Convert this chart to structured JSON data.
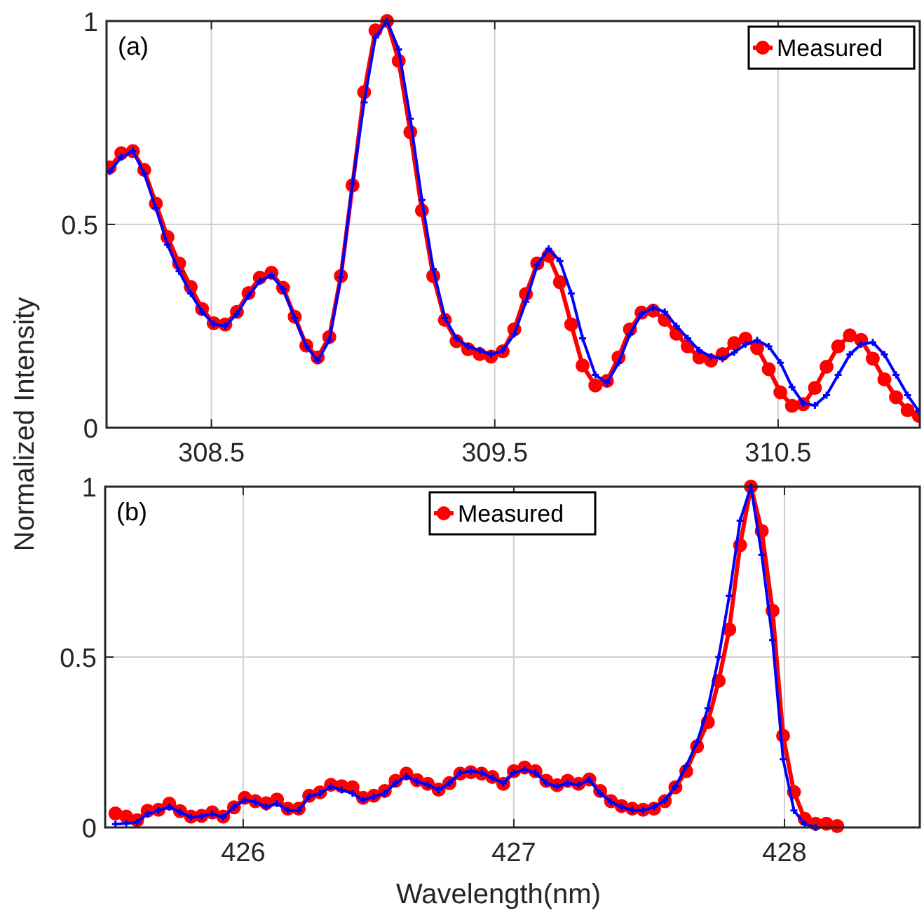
{
  "chart_data": [
    {
      "type": "line",
      "ylabel": "Normalized Intensity",
      "annotations": [
        "(a)"
      ],
      "xlim": [
        308.13,
        311
      ],
      "ylim": [
        0,
        1
      ],
      "xticks": [
        308.5,
        309.5,
        310.5
      ],
      "yticks": [
        0,
        0.5,
        1
      ],
      "grid": true,
      "legend": "top right",
      "line_style": "solid",
      "series": [
        {
          "color": "#0000ff",
          "marker": "cross",
          "x": [
            308.141,
            308.182,
            308.223,
            308.263,
            308.304,
            308.345,
            308.386,
            308.427,
            308.467,
            308.508,
            308.549,
            308.59,
            308.631,
            308.671,
            308.712,
            308.753,
            308.794,
            308.835,
            308.875,
            308.916,
            308.957,
            308.998,
            309.039,
            309.079,
            309.12,
            309.161,
            309.202,
            309.243,
            309.283,
            309.324,
            309.365,
            309.406,
            309.447,
            309.487,
            309.528,
            309.569,
            309.61,
            309.65,
            309.69,
            309.73,
            309.77,
            309.81,
            309.855,
            309.896,
            309.937,
            309.977,
            310.018,
            310.059,
            310.1,
            310.141,
            310.181,
            310.222,
            310.263,
            310.304,
            310.345,
            310.385,
            310.426,
            310.467,
            310.508,
            310.549,
            310.589,
            310.63,
            310.671,
            310.712,
            310.753,
            310.793,
            310.834,
            310.875,
            310.916,
            310.957,
            310.997
          ],
          "values": [
            0.63,
            0.665,
            0.68,
            0.625,
            0.54,
            0.45,
            0.385,
            0.33,
            0.285,
            0.255,
            0.25,
            0.28,
            0.325,
            0.36,
            0.375,
            0.34,
            0.27,
            0.2,
            0.165,
            0.215,
            0.37,
            0.6,
            0.8,
            0.96,
            1.0,
            0.93,
            0.76,
            0.56,
            0.39,
            0.27,
            0.22,
            0.2,
            0.19,
            0.18,
            0.19,
            0.23,
            0.31,
            0.4,
            0.44,
            0.41,
            0.33,
            0.22,
            0.13,
            0.11,
            0.16,
            0.23,
            0.28,
            0.295,
            0.285,
            0.25,
            0.22,
            0.19,
            0.175,
            0.17,
            0.185,
            0.205,
            0.215,
            0.2,
            0.16,
            0.1,
            0.06,
            0.055,
            0.08,
            0.13,
            0.18,
            0.205,
            0.21,
            0.18,
            0.13,
            0.08,
            0.04
          ]
        },
        {
          "name": "Measured",
          "color": "#ff0000",
          "marker": "circle",
          "x": [
            308.141,
            308.182,
            308.223,
            308.263,
            308.304,
            308.345,
            308.386,
            308.427,
            308.467,
            308.508,
            308.549,
            308.59,
            308.631,
            308.671,
            308.712,
            308.753,
            308.794,
            308.835,
            308.875,
            308.916,
            308.957,
            308.998,
            309.039,
            309.079,
            309.12,
            309.161,
            309.202,
            309.243,
            309.283,
            309.324,
            309.365,
            309.406,
            309.447,
            309.487,
            309.528,
            309.569,
            309.61,
            309.65,
            309.69,
            309.73,
            309.77,
            309.81,
            309.855,
            309.896,
            309.937,
            309.977,
            310.018,
            310.059,
            310.1,
            310.141,
            310.181,
            310.222,
            310.263,
            310.304,
            310.345,
            310.385,
            310.426,
            310.467,
            310.508,
            310.549,
            310.589,
            310.63,
            310.671,
            310.712,
            310.753,
            310.793,
            310.834,
            310.875,
            310.916,
            310.957,
            310.997
          ],
          "values": [
            0.64,
            0.675,
            0.68,
            0.634,
            0.551,
            0.469,
            0.404,
            0.346,
            0.292,
            0.257,
            0.254,
            0.285,
            0.331,
            0.369,
            0.381,
            0.344,
            0.273,
            0.202,
            0.173,
            0.223,
            0.373,
            0.596,
            0.825,
            0.977,
            1.0,
            0.902,
            0.727,
            0.534,
            0.373,
            0.265,
            0.213,
            0.193,
            0.181,
            0.175,
            0.188,
            0.242,
            0.329,
            0.404,
            0.423,
            0.358,
            0.254,
            0.153,
            0.104,
            0.115,
            0.173,
            0.242,
            0.283,
            0.288,
            0.265,
            0.231,
            0.2,
            0.173,
            0.165,
            0.181,
            0.208,
            0.219,
            0.196,
            0.144,
            0.087,
            0.054,
            0.058,
            0.098,
            0.15,
            0.2,
            0.227,
            0.216,
            0.17,
            0.119,
            0.075,
            0.043,
            0.029
          ]
        }
      ]
    },
    {
      "type": "line",
      "xlabel": "Wavelength(nm)",
      "annotations": [
        "(b)"
      ],
      "xlim": [
        425.49,
        428.5
      ],
      "ylim": [
        0,
        1
      ],
      "xticks": [
        426,
        427,
        428
      ],
      "yticks": [
        0,
        0.5,
        1
      ],
      "grid": true,
      "legend": "top",
      "line_style": "solid",
      "series": [
        {
          "color": "#0000ff",
          "marker": "cross",
          "x": [
            425.528,
            425.568,
            425.608,
            425.647,
            425.687,
            425.727,
            425.767,
            425.807,
            425.846,
            425.886,
            425.926,
            425.966,
            426.006,
            426.045,
            426.085,
            426.125,
            426.165,
            426.205,
            426.244,
            426.284,
            426.324,
            426.364,
            426.404,
            426.443,
            426.483,
            426.523,
            426.563,
            426.603,
            426.642,
            426.682,
            426.722,
            426.762,
            426.802,
            426.841,
            426.881,
            426.921,
            426.961,
            427.0,
            427.04,
            427.08,
            427.12,
            427.16,
            427.199,
            427.239,
            427.279,
            427.319,
            427.359,
            427.398,
            427.438,
            427.478,
            427.518,
            427.558,
            427.597,
            427.637,
            427.677,
            427.717,
            427.757,
            427.796,
            427.836,
            427.876,
            427.916,
            427.956,
            427.995,
            428.035,
            428.075,
            428.115
          ],
          "values": [
            0.01,
            0.012,
            0.015,
            0.04,
            0.05,
            0.06,
            0.045,
            0.03,
            0.033,
            0.04,
            0.03,
            0.06,
            0.08,
            0.075,
            0.06,
            0.07,
            0.05,
            0.05,
            0.09,
            0.1,
            0.12,
            0.11,
            0.1,
            0.08,
            0.09,
            0.1,
            0.13,
            0.15,
            0.135,
            0.125,
            0.11,
            0.13,
            0.16,
            0.165,
            0.16,
            0.145,
            0.13,
            0.16,
            0.17,
            0.16,
            0.13,
            0.12,
            0.13,
            0.125,
            0.14,
            0.1,
            0.075,
            0.06,
            0.05,
            0.05,
            0.06,
            0.08,
            0.12,
            0.18,
            0.25,
            0.35,
            0.5,
            0.68,
            0.9,
            1.0,
            0.8,
            0.55,
            0.2,
            0.05,
            0.01,
            0.0
          ]
        },
        {
          "name": "Measured",
          "color": "#ff0000",
          "marker": "circle",
          "x": [
            425.528,
            425.568,
            425.608,
            425.647,
            425.687,
            425.727,
            425.767,
            425.807,
            425.846,
            425.886,
            425.926,
            425.966,
            426.006,
            426.045,
            426.085,
            426.125,
            426.165,
            426.205,
            426.244,
            426.284,
            426.324,
            426.364,
            426.404,
            426.443,
            426.483,
            426.523,
            426.563,
            426.603,
            426.642,
            426.682,
            426.722,
            426.762,
            426.802,
            426.841,
            426.881,
            426.921,
            426.961,
            427.0,
            427.04,
            427.08,
            427.12,
            427.16,
            427.199,
            427.239,
            427.279,
            427.319,
            427.359,
            427.398,
            427.438,
            427.478,
            427.518,
            427.558,
            427.597,
            427.637,
            427.677,
            427.717,
            427.757,
            427.796,
            427.836,
            427.876,
            427.916,
            427.956,
            427.995,
            428.035,
            428.075,
            428.115,
            428.155,
            428.195
          ],
          "values": [
            0.041,
            0.032,
            0.021,
            0.049,
            0.052,
            0.07,
            0.048,
            0.032,
            0.034,
            0.044,
            0.032,
            0.059,
            0.087,
            0.077,
            0.071,
            0.082,
            0.055,
            0.055,
            0.093,
            0.103,
            0.125,
            0.121,
            0.118,
            0.087,
            0.093,
            0.107,
            0.137,
            0.158,
            0.139,
            0.128,
            0.111,
            0.13,
            0.158,
            0.162,
            0.158,
            0.148,
            0.128,
            0.165,
            0.176,
            0.165,
            0.137,
            0.124,
            0.137,
            0.128,
            0.141,
            0.107,
            0.077,
            0.063,
            0.055,
            0.052,
            0.055,
            0.077,
            0.118,
            0.165,
            0.238,
            0.309,
            0.43,
            0.581,
            0.828,
            1.0,
            0.87,
            0.636,
            0.269,
            0.104,
            0.025,
            0.011,
            0.011,
            0.004
          ]
        }
      ]
    }
  ]
}
